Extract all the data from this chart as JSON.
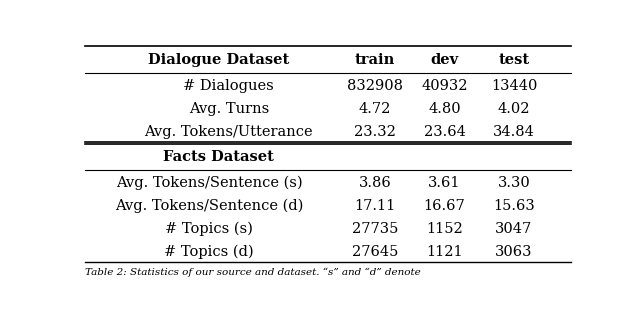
{
  "section1_header": "Dialogue Dataset",
  "section1_rows": [
    [
      "# Dialogues",
      "832908",
      "40932",
      "13440"
    ],
    [
      "Avg. Turns",
      "4.72",
      "4.80",
      "4.02"
    ],
    [
      "Avg. Tokens/Utterance",
      "23.32",
      "23.64",
      "34.84"
    ]
  ],
  "section2_header": "Facts Dataset",
  "section2_rows": [
    [
      "Avg. Tokens/Sentence (s)",
      "3.86",
      "3.61",
      "3.30"
    ],
    [
      "Avg. Tokens/Sentence (d)",
      "17.11",
      "16.67",
      "15.63"
    ],
    [
      "# Topics (s)",
      "27735",
      "1152",
      "3047"
    ],
    [
      "# Topics (d)",
      "27645",
      "1121",
      "3063"
    ]
  ],
  "caption": "Table 2: Statistics of our source and dataset. “s” and “d” denote",
  "col_headers": [
    "train",
    "dev",
    "test"
  ],
  "bg_color": "#ffffff",
  "text_color": "#000000",
  "font_size": 10.5,
  "header_font_size": 10.5
}
